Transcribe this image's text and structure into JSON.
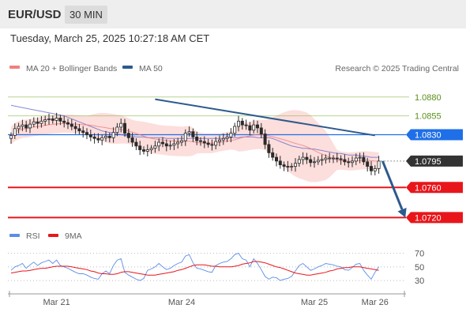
{
  "header": {
    "pair": "EUR/USD",
    "timeframe": "30 MIN"
  },
  "datetime": "Tuesday, March 25, 2025 10:27:18 AM CET",
  "legend": {
    "bollinger": {
      "label": "MA 20 + Bollinger Bands",
      "color": "#f08080"
    },
    "ma50": {
      "label": "MA 50",
      "color": "#2d5a8e"
    },
    "source": "Research © 2025 Trading Central",
    "rsi": {
      "label": "RSI",
      "color": "#5b8ee6"
    },
    "rsi_ma": {
      "label": "9MA",
      "color": "#e8161b"
    }
  },
  "chart_data": {
    "type": "candlestick",
    "price_ylim": [
      1.0711,
      1.0906
    ],
    "levels": [
      {
        "label": "1.0880",
        "value": 1.088,
        "style": "target",
        "color": "#8ab84a"
      },
      {
        "label": "1.0855",
        "value": 1.0855,
        "style": "target",
        "color": "#8ab84a"
      },
      {
        "label": "1.0830",
        "value": 1.083,
        "style": "pivot",
        "color": "#1e6fe8"
      },
      {
        "label": "1.0795",
        "value": 1.0795,
        "style": "last",
        "color": "#333333"
      },
      {
        "label": "1.0760",
        "value": 1.076,
        "style": "support",
        "color": "#e8161b"
      },
      {
        "label": "1.0720",
        "value": 1.072,
        "style": "support",
        "color": "#e8161b"
      }
    ],
    "trendline": {
      "from": {
        "bar": 38,
        "price": 1.0877
      },
      "to": {
        "bar": 96,
        "price": 1.0829
      }
    },
    "forecast_arrow": {
      "from": {
        "bar": 98,
        "price": 1.0795
      },
      "to": {
        "bar": 104,
        "price": 1.072
      }
    },
    "x_ticks": [
      {
        "label": "Mar 21",
        "bar": 12
      },
      {
        "label": "Mar 24",
        "bar": 45
      },
      {
        "label": "Mar 25",
        "bar": 80
      },
      {
        "label": "Mar 26",
        "bar": 96
      }
    ],
    "rsi_ylim": [
      15,
      80
    ],
    "rsi_levels": [
      70,
      50,
      30
    ],
    "series": [
      {
        "name": "close",
        "values": [
          1.0829,
          1.0838,
          1.0841,
          1.0843,
          1.0839,
          1.0844,
          1.0847,
          1.0845,
          1.0848,
          1.085,
          1.0851,
          1.0849,
          1.0852,
          1.0848,
          1.0846,
          1.0844,
          1.0841,
          1.0838,
          1.0835,
          1.0833,
          1.083,
          1.0827,
          1.0825,
          1.0823,
          1.0826,
          1.0828,
          1.0826,
          1.0833,
          1.084,
          1.0845,
          1.0832,
          1.0826,
          1.082,
          1.0815,
          1.081,
          1.0808,
          1.081,
          1.0812,
          1.0815,
          1.082,
          1.0818,
          1.0815,
          1.0816,
          1.0818,
          1.082,
          1.0822,
          1.0832,
          1.0834,
          1.0827,
          1.0822,
          1.0821,
          1.0819,
          1.0817,
          1.0816,
          1.0821,
          1.0823,
          1.0825,
          1.0827,
          1.0832,
          1.0841,
          1.0848,
          1.0843,
          1.0842,
          1.0836,
          1.0843,
          1.0839,
          1.0831,
          1.0817,
          1.0806,
          1.08,
          1.0795,
          1.079,
          1.0788,
          1.0787,
          1.0788,
          1.0792,
          1.0797,
          1.08,
          1.0797,
          1.0793,
          1.0794,
          1.0796,
          1.0797,
          1.0799,
          1.0799,
          1.0799,
          1.0798,
          1.0797,
          1.0794,
          1.0793,
          1.0795,
          1.0799,
          1.08,
          1.0794,
          1.0788,
          1.0782,
          1.0785,
          1.0795
        ]
      },
      {
        "name": "MA 50",
        "values": [
          1.0869,
          1.0868,
          1.0867,
          1.0866,
          1.0865,
          1.0864,
          1.0863,
          1.0862,
          1.0861,
          1.086,
          1.0859,
          1.0858,
          1.0857,
          1.0856,
          1.0855,
          1.0853,
          1.0851,
          1.0849,
          1.0847,
          1.0845,
          1.0843,
          1.0841,
          1.0839,
          1.0837,
          1.0835,
          1.0834,
          1.0833,
          1.0832,
          1.0831,
          1.083,
          1.0829,
          1.0828,
          1.0828,
          1.0827,
          1.0827,
          1.0827,
          1.0826,
          1.0826,
          1.0826,
          1.0826,
          1.0826,
          1.0825,
          1.0825,
          1.0825,
          1.0825,
          1.0825,
          1.0825,
          1.0825,
          1.0825,
          1.0825,
          1.0825,
          1.0825,
          1.0825,
          1.0825,
          1.0825,
          1.0825,
          1.0825,
          1.0826,
          1.0826,
          1.0826,
          1.0826,
          1.0827,
          1.0827,
          1.0827,
          1.0827,
          1.0826,
          1.0826,
          1.0826,
          1.0826,
          1.0825,
          1.0823,
          1.0821,
          1.0819,
          1.0817,
          1.0815,
          1.0814,
          1.0813,
          1.0812,
          1.0812,
          1.0811,
          1.0811,
          1.081,
          1.0809,
          1.0808,
          1.0807,
          1.0806,
          1.0805,
          1.0805,
          1.0804,
          1.0803,
          1.0803,
          1.0803,
          1.0802,
          1.0802,
          1.0801,
          1.08,
          1.08,
          1.08
        ]
      },
      {
        "name": "RSI",
        "values": [
          45,
          50,
          52,
          55,
          48,
          53,
          57,
          52,
          56,
          58,
          60,
          55,
          60,
          52,
          50,
          48,
          45,
          42,
          40,
          40,
          38,
          35,
          33,
          32,
          40,
          44,
          40,
          52,
          60,
          62,
          42,
          38,
          35,
          32,
          30,
          33,
          45,
          47,
          50,
          55,
          50,
          46,
          48,
          52,
          55,
          57,
          66,
          68,
          56,
          48,
          47,
          45,
          43,
          42,
          52,
          55,
          57,
          58,
          62,
          68,
          70,
          62,
          60,
          50,
          62,
          55,
          46,
          36,
          32,
          35,
          34,
          30,
          32,
          33,
          36,
          44,
          52,
          55,
          50,
          45,
          47,
          50,
          52,
          55,
          54,
          53,
          51,
          50,
          46,
          45,
          49,
          54,
          55,
          45,
          38,
          32,
          42,
          50
        ]
      },
      {
        "name": "9MA",
        "values": [
          41,
          42,
          43,
          44,
          44,
          45,
          46,
          47,
          48,
          48,
          49,
          50,
          51,
          51,
          51,
          51,
          50,
          49,
          48,
          47,
          46,
          44,
          43,
          41,
          40,
          40,
          39,
          39,
          40,
          42,
          43,
          43,
          42,
          41,
          40,
          39,
          38,
          38,
          38,
          39,
          40,
          41,
          42,
          43,
          45,
          46,
          48,
          50,
          52,
          53,
          53,
          53,
          52,
          51,
          51,
          50,
          50,
          50,
          50,
          51,
          52,
          54,
          55,
          56,
          58,
          58,
          57,
          56,
          54,
          52,
          50,
          49,
          47,
          45,
          43,
          41,
          40,
          39,
          38,
          38,
          39,
          40,
          41,
          42,
          44,
          45,
          47,
          48,
          49,
          49,
          50,
          50,
          50,
          49,
          48,
          47,
          46,
          45
        ]
      }
    ]
  }
}
